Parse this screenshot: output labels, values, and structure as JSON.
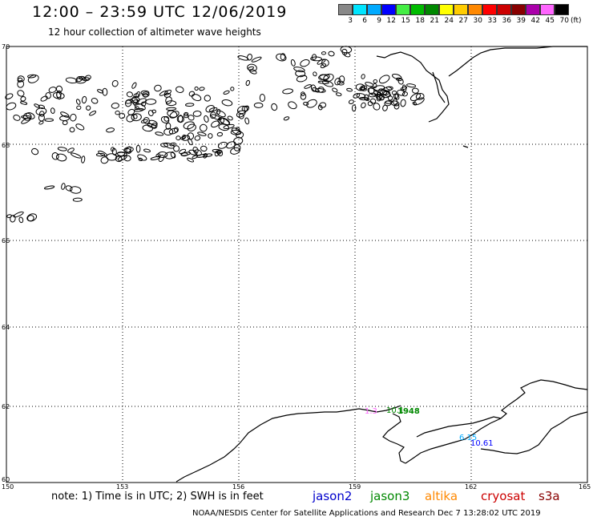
{
  "header": {
    "title": "12:00 – 23:59 UTC 12/06/2019",
    "subtitle": "12 hour collection of altimeter wave heights"
  },
  "colorbar": {
    "labels": [
      "3",
      "6",
      "9",
      "12",
      "15",
      "18",
      "21",
      "24",
      "27",
      "30",
      "33",
      "36",
      "39",
      "42",
      "45",
      "70"
    ],
    "unit": "(ft)",
    "colors": [
      "#888888",
      "#00e5ff",
      "#00aaff",
      "#0000ff",
      "#44ee44",
      "#00bb00",
      "#008800",
      "#ffff00",
      "#ffcc00",
      "#ff8800",
      "#ff0000",
      "#cc0000",
      "#880000",
      "#aa00aa",
      "#ff66ff",
      "#000000"
    ]
  },
  "map": {
    "lat_labels": [
      "70",
      "68",
      "66",
      "64",
      "62",
      "60"
    ],
    "lon_labels": [
      "150",
      "153",
      "156",
      "159",
      "162",
      "165"
    ]
  },
  "observations": [
    {
      "text": "10.1",
      "color": "#008800"
    },
    {
      "text": "1948",
      "color": "#008800"
    },
    {
      "text": "1.3 ",
      "color": "#ff66ff"
    },
    {
      "text": "6.15",
      "color": "#00aaff"
    },
    {
      "text": "10.61",
      "color": "#0000ff"
    }
  ],
  "footer": {
    "note": "note: 1) Time is in UTC; 2) SWH is in feet",
    "satellites": [
      {
        "name": "jason2",
        "color": "#0000cc"
      },
      {
        "name": "jason3",
        "color": "#008800"
      },
      {
        "name": "altika",
        "color": "#ff8800"
      },
      {
        "name": "cryosat",
        "color": "#cc0000"
      },
      {
        "name": "s3a",
        "color": "#880000"
      }
    ],
    "credit": "NOAA/NESDIS Center for Satellite Applications and Research    Dec  7 13:28:02 UTC 2019"
  }
}
